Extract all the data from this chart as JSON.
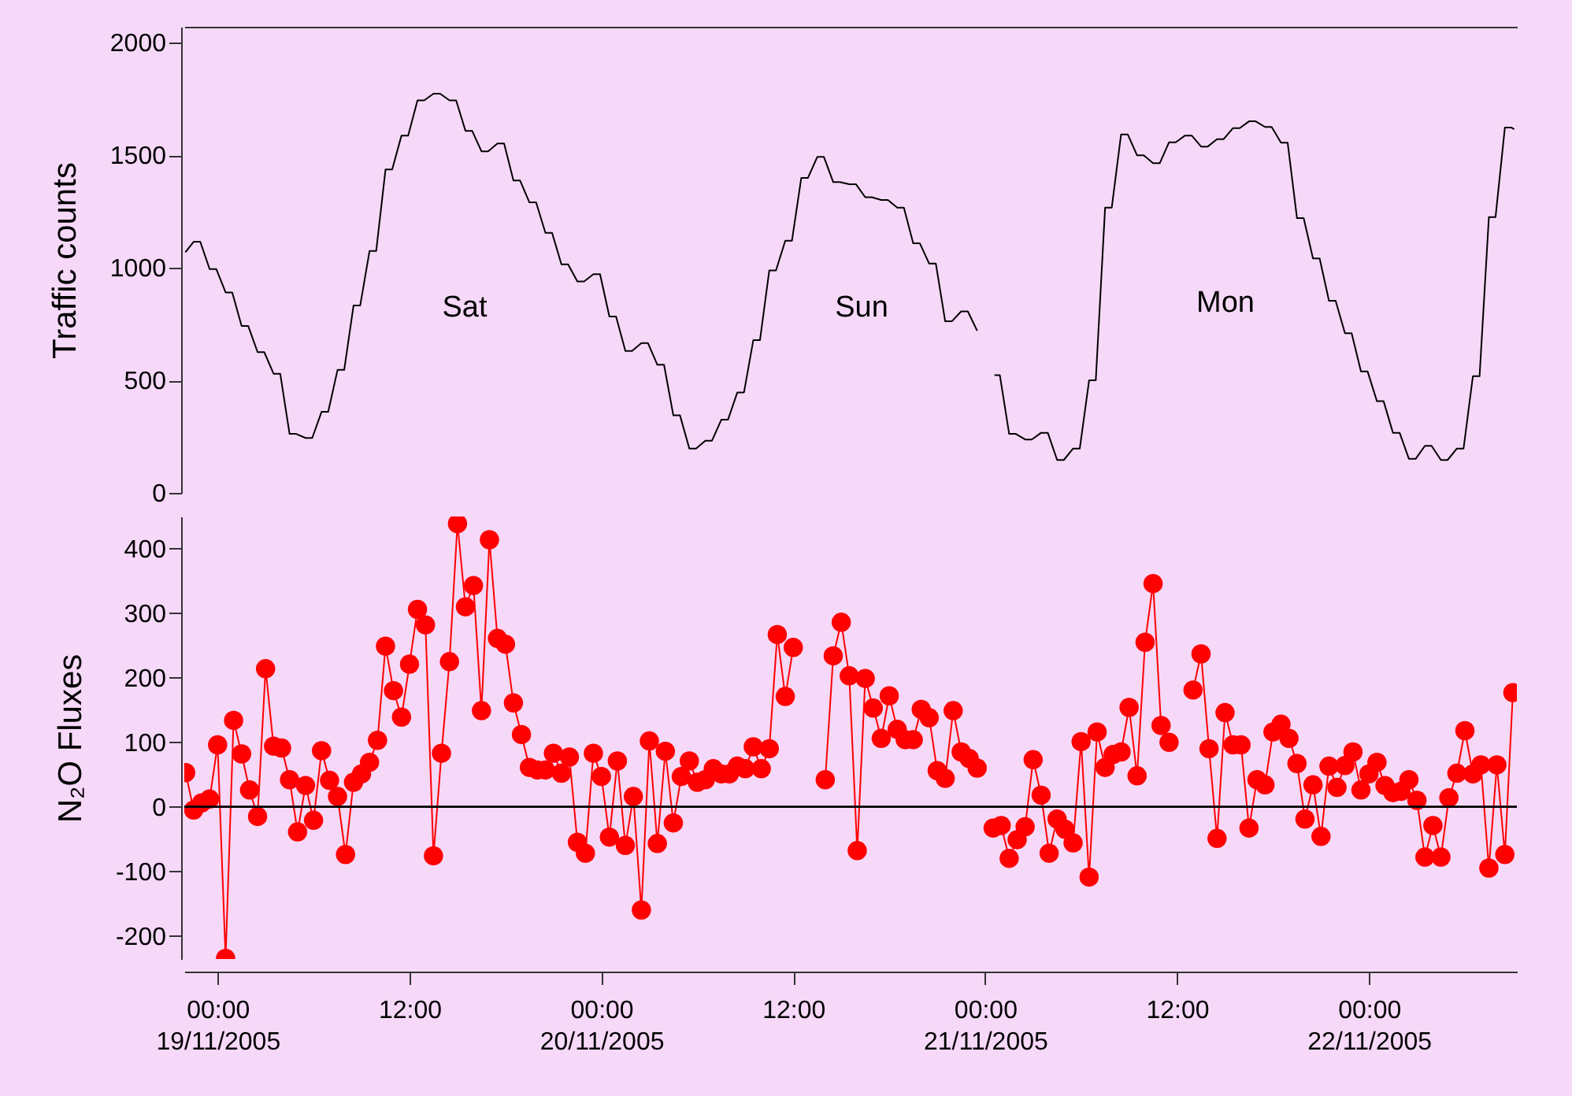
{
  "chart_data": [
    {
      "type": "line",
      "ylabel": "Traffic counts",
      "color": "#000000",
      "ylim": [
        0,
        2070
      ],
      "yticks": [
        0,
        500,
        1000,
        1500,
        2000
      ],
      "xlim": [
        "2005-11-18T21:55",
        "2005-11-22T09:15"
      ],
      "tick_labels": "y",
      "grid": false,
      "annotations": [
        "Sat",
        "Sun",
        "Mon"
      ],
      "x": [
        "2005-11-18T21:59",
        "2005-11-18T22:30",
        "2005-11-18T22:55",
        "2005-11-18T23:30",
        "2005-11-18T23:55",
        "2005-11-19T00:30",
        "2005-11-19T00:55",
        "2005-11-19T01:30",
        "2005-11-19T01:55",
        "2005-11-19T02:30",
        "2005-11-19T02:55",
        "2005-11-19T03:30",
        "2005-11-19T03:55",
        "2005-11-19T04:30",
        "2005-11-19T04:55",
        "2005-11-19T05:30",
        "2005-11-19T05:55",
        "2005-11-19T06:30",
        "2005-11-19T06:55",
        "2005-11-19T07:30",
        "2005-11-19T07:55",
        "2005-11-19T08:30",
        "2005-11-19T08:55",
        "2005-11-19T09:30",
        "2005-11-19T09:55",
        "2005-11-19T10:30",
        "2005-11-19T10:55",
        "2005-11-19T11:30",
        "2005-11-19T11:55",
        "2005-11-19T12:30",
        "2005-11-19T12:55",
        "2005-11-19T13:30",
        "2005-11-19T13:55",
        "2005-11-19T14:30",
        "2005-11-19T14:55",
        "2005-11-19T15:30",
        "2005-11-19T15:55",
        "2005-11-19T16:30",
        "2005-11-19T16:55",
        "2005-11-19T17:30",
        "2005-11-19T17:55",
        "2005-11-19T18:30",
        "2005-11-19T18:55",
        "2005-11-19T19:30",
        "2005-11-19T19:55",
        "2005-11-19T20:30",
        "2005-11-19T20:55",
        "2005-11-19T21:30",
        "2005-11-19T21:55",
        "2005-11-19T22:30",
        "2005-11-19T22:55",
        "2005-11-19T23:30",
        "2005-11-19T23:55",
        "2005-11-20T00:30",
        "2005-11-20T00:55",
        "2005-11-20T01:30",
        "2005-11-20T01:55",
        "2005-11-20T02:30",
        "2005-11-20T02:55",
        "2005-11-20T03:30",
        "2005-11-20T03:55",
        "2005-11-20T04:30",
        "2005-11-20T04:55",
        "2005-11-20T05:30",
        "2005-11-20T05:55",
        "2005-11-20T06:30",
        "2005-11-20T06:55",
        "2005-11-20T07:30",
        "2005-11-20T07:55",
        "2005-11-20T08:30",
        "2005-11-20T08:55",
        "2005-11-20T09:30",
        "2005-11-20T09:55",
        "2005-11-20T10:30",
        "2005-11-20T10:55",
        "2005-11-20T11:30",
        "2005-11-20T11:55",
        "2005-11-20T12:30",
        "2005-11-20T12:55",
        "2005-11-20T13:30",
        "2005-11-20T13:55",
        "2005-11-20T14:30",
        "2005-11-20T14:55",
        "2005-11-20T15:30",
        "2005-11-20T15:55",
        "2005-11-20T16:30",
        "2005-11-20T16:55",
        "2005-11-20T17:30",
        "2005-11-20T17:55",
        "2005-11-20T18:30",
        "2005-11-20T18:55",
        "2005-11-20T19:30",
        "2005-11-20T19:55",
        "2005-11-20T20:30",
        "2005-11-20T20:55",
        "2005-11-20T21:30",
        "2005-11-20T21:55",
        "2005-11-20T22:30",
        "2005-11-20T22:55",
        "2005-11-20T23:30",
        "2005-11-21T00:00",
        "2005-11-21T00:35",
        "2005-11-21T00:55",
        "2005-11-21T01:30",
        "2005-11-21T01:55",
        "2005-11-21T02:30",
        "2005-11-21T02:55",
        "2005-11-21T03:30",
        "2005-11-21T03:55",
        "2005-11-21T04:30",
        "2005-11-21T04:55",
        "2005-11-21T05:30",
        "2005-11-21T05:55",
        "2005-11-21T06:30",
        "2005-11-21T06:55",
        "2005-11-21T07:30",
        "2005-11-21T07:55",
        "2005-11-21T08:30",
        "2005-11-21T08:55",
        "2005-11-21T09:30",
        "2005-11-21T09:55",
        "2005-11-21T10:30",
        "2005-11-21T10:55",
        "2005-11-21T11:30",
        "2005-11-21T11:55",
        "2005-11-21T12:30",
        "2005-11-21T12:55",
        "2005-11-21T13:30",
        "2005-11-21T13:55",
        "2005-11-21T14:30",
        "2005-11-21T14:55",
        "2005-11-21T15:30",
        "2005-11-21T15:55",
        "2005-11-21T16:30",
        "2005-11-21T16:55",
        "2005-11-21T17:30",
        "2005-11-21T17:55",
        "2005-11-21T18:30",
        "2005-11-21T18:55",
        "2005-11-21T19:30",
        "2005-11-21T19:55",
        "2005-11-21T20:30",
        "2005-11-21T20:55",
        "2005-11-21T21:30",
        "2005-11-21T21:55",
        "2005-11-21T22:30",
        "2005-11-21T22:55",
        "2005-11-21T23:30",
        "2005-11-21T23:55",
        "2005-11-22T00:30",
        "2005-11-22T00:55",
        "2005-11-22T01:30",
        "2005-11-22T01:55",
        "2005-11-22T02:30",
        "2005-11-22T02:55",
        "2005-11-22T03:30",
        "2005-11-22T03:55",
        "2005-11-22T04:30",
        "2005-11-22T04:55",
        "2005-11-22T05:30",
        "2005-11-22T05:55",
        "2005-11-22T06:30",
        "2005-11-22T06:55",
        "2005-11-22T07:30",
        "2005-11-22T07:55",
        "2005-11-22T08:30",
        "2005-11-22T08:55",
        "2005-11-22T09:05"
      ],
      "values": [
        1069,
        1115,
        1115,
        994,
        994,
        890,
        890,
        741,
        741,
        625,
        625,
        529,
        529,
        262,
        262,
        244,
        244,
        360,
        360,
        546,
        546,
        832,
        832,
        1074,
        1074,
        1436,
        1436,
        1587,
        1587,
        1743,
        1743,
        1773,
        1773,
        1743,
        1743,
        1608,
        1608,
        1517,
        1517,
        1552,
        1552,
        1387,
        1387,
        1290,
        1290,
        1155,
        1155,
        1015,
        1015,
        939,
        939,
        971,
        971,
        783,
        783,
        630,
        630,
        665,
        665,
        569,
        569,
        344,
        344,
        197,
        197,
        232,
        232,
        325,
        325,
        446,
        446,
        678,
        678,
        988,
        988,
        1120,
        1120,
        1399,
        1399,
        1492,
        1492,
        1380,
        1380,
        1371,
        1371,
        1313,
        1313,
        1301,
        1301,
        1267,
        1267,
        1108,
        1108,
        1018,
        1018,
        762,
        762,
        806,
        806,
        720,
        null,
        523,
        523,
        262,
        262,
        237,
        237,
        267,
        267,
        146,
        146,
        197,
        197,
        500,
        500,
        1267,
        1267,
        1592,
        1592,
        1499,
        1499,
        1464,
        1464,
        1557,
        1557,
        1587,
        1587,
        1538,
        1538,
        1571,
        1571,
        1620,
        1620,
        1650,
        1650,
        1625,
        1625,
        1555,
        1555,
        1220,
        1220,
        1041,
        1041,
        853,
        853,
        709,
        709,
        539,
        539,
        407,
        407,
        267,
        267,
        151,
        151,
        209,
        209,
        146,
        146,
        197,
        197,
        518,
        518,
        1225,
        1225,
        1622,
        1622,
        1615
      ]
    },
    {
      "type": "line",
      "ylabel": "N₂O Fluxes",
      "color": "#ff0000",
      "marker": "circle",
      "ylim": [
        -236,
        450
      ],
      "yticks": [
        -200,
        -100,
        0,
        100,
        200,
        300,
        400
      ],
      "xlim": [
        "2005-11-18T21:55",
        "2005-11-22T09:15"
      ],
      "grid": false,
      "xticks": [
        {
          "value": "2005-11-19T00:00",
          "label": "00:00\n19/11/2005"
        },
        {
          "value": "2005-11-19T12:00",
          "label": "12:00"
        },
        {
          "value": "2005-11-20T00:00",
          "label": "00:00\n20/11/2005"
        },
        {
          "value": "2005-11-20T12:00",
          "label": "12:00"
        },
        {
          "value": "2005-11-21T00:00",
          "label": "00:00\n21/11/2005"
        },
        {
          "value": "2005-11-21T12:00",
          "label": "12:00"
        },
        {
          "value": "2005-11-22T00:00",
          "label": "00:00\n22/11/2005"
        }
      ],
      "ref_lines": [
        {
          "axis": "y",
          "value": 0,
          "color": "#000000"
        }
      ],
      "x": [
        "2005-11-18T22:00",
        "2005-11-18T22:30",
        "2005-11-18T23:00",
        "2005-11-18T23:30",
        "2005-11-19T00:00",
        "2005-11-19T00:30",
        "2005-11-19T01:00",
        "2005-11-19T01:30",
        "2005-11-19T02:00",
        "2005-11-19T02:30",
        "2005-11-19T03:00",
        "2005-11-19T03:30",
        "2005-11-19T04:00",
        "2005-11-19T04:30",
        "2005-11-19T05:00",
        "2005-11-19T05:30",
        "2005-11-19T06:00",
        "2005-11-19T06:30",
        "2005-11-19T07:00",
        "2005-11-19T07:30",
        "2005-11-19T08:00",
        "2005-11-19T08:30",
        "2005-11-19T09:00",
        "2005-11-19T09:30",
        "2005-11-19T10:00",
        "2005-11-19T10:30",
        "2005-11-19T11:00",
        "2005-11-19T11:30",
        "2005-11-19T12:00",
        "2005-11-19T12:30",
        "2005-11-19T13:00",
        "2005-11-19T13:30",
        "2005-11-19T14:00",
        "2005-11-19T14:30",
        "2005-11-19T15:00",
        "2005-11-19T15:30",
        "2005-11-19T16:00",
        "2005-11-19T16:30",
        "2005-11-19T17:00",
        "2005-11-19T17:30",
        "2005-11-19T18:00",
        "2005-11-19T18:30",
        "2005-11-19T19:00",
        "2005-11-19T19:30",
        "2005-11-19T20:00",
        "2005-11-19T20:30",
        "2005-11-19T21:00",
        "2005-11-19T21:30",
        "2005-11-19T22:00",
        "2005-11-19T22:30",
        "2005-11-19T23:00",
        "2005-11-19T23:30",
        "2005-11-20T00:00",
        "2005-11-20T00:30",
        "2005-11-20T01:00",
        "2005-11-20T01:30",
        "2005-11-20T02:00",
        "2005-11-20T02:30",
        "2005-11-20T03:00",
        "2005-11-20T03:30",
        "2005-11-20T04:00",
        "2005-11-20T04:30",
        "2005-11-20T05:00",
        "2005-11-20T05:30",
        "2005-11-20T06:00",
        "2005-11-20T06:30",
        "2005-11-20T07:00",
        "2005-11-20T07:30",
        "2005-11-20T08:00",
        "2005-11-20T08:30",
        "2005-11-20T09:00",
        "2005-11-20T09:30",
        "2005-11-20T10:00",
        "2005-11-20T10:30",
        "2005-11-20T11:00",
        "2005-11-20T11:30",
        "2005-11-20T12:00",
        "2005-11-20T13:00",
        "2005-11-20T14:00",
        "2005-11-20T14:30",
        "2005-11-20T15:00",
        "2005-11-20T15:30",
        "2005-11-20T16:00",
        "2005-11-20T16:30",
        "2005-11-20T17:00",
        "2005-11-20T17:30",
        "2005-11-20T18:00",
        "2005-11-20T18:30",
        "2005-11-20T19:00",
        "2005-11-20T19:30",
        "2005-11-20T20:00",
        "2005-11-20T20:30",
        "2005-11-20T21:00",
        "2005-11-20T21:30",
        "2005-11-20T22:00",
        "2005-11-20T22:30",
        "2005-11-20T23:00",
        "2005-11-20T23:30",
        "2005-11-21T00:00",
        "2005-11-21T00:30",
        "2005-11-21T01:00",
        "2005-11-21T01:30",
        "2005-11-21T02:00",
        "2005-11-21T02:30",
        "2005-11-21T03:00",
        "2005-11-21T03:30",
        "2005-11-21T04:00",
        "2005-11-21T04:30",
        "2005-11-21T05:00",
        "2005-11-21T05:30",
        "2005-11-21T06:00",
        "2005-11-21T06:30",
        "2005-11-21T07:00",
        "2005-11-21T07:30",
        "2005-11-21T08:00",
        "2005-11-21T08:30",
        "2005-11-21T09:00",
        "2005-11-21T09:30",
        "2005-11-21T10:00",
        "2005-11-21T10:30",
        "2005-11-21T11:00",
        "2005-11-21T11:30",
        "2005-11-21T12:00",
        "2005-11-21T13:00",
        "2005-11-21T13:30",
        "2005-11-21T14:00",
        "2005-11-21T14:30",
        "2005-11-21T15:00",
        "2005-11-21T15:30",
        "2005-11-21T16:00",
        "2005-11-21T16:30",
        "2005-11-21T17:00",
        "2005-11-21T17:30",
        "2005-11-21T18:00",
        "2005-11-21T18:30",
        "2005-11-21T19:00",
        "2005-11-21T19:30",
        "2005-11-21T20:00",
        "2005-11-21T20:30",
        "2005-11-21T21:00",
        "2005-11-21T21:30",
        "2005-11-21T22:00",
        "2005-11-21T22:30",
        "2005-11-21T23:00",
        "2005-11-21T23:30",
        "2005-11-22T00:00",
        "2005-11-22T00:30",
        "2005-11-22T01:00",
        "2005-11-22T01:30",
        "2005-11-22T02:00",
        "2005-11-22T02:30",
        "2005-11-22T03:00",
        "2005-11-22T03:30",
        "2005-11-22T04:00",
        "2005-11-22T04:30",
        "2005-11-22T05:00",
        "2005-11-22T05:30",
        "2005-11-22T06:00",
        "2005-11-22T06:30",
        "2005-11-22T07:00",
        "2005-11-22T07:30",
        "2005-11-22T08:00",
        "2005-11-22T08:30",
        "2005-11-22T09:00"
      ],
      "values": [
        53,
        -5,
        6,
        12,
        96,
        -235,
        134,
        82,
        26,
        -15,
        214,
        94,
        91,
        42,
        -39,
        33,
        -21,
        87,
        41,
        16,
        -74,
        38,
        51,
        69,
        103,
        249,
        180,
        139,
        221,
        306,
        282,
        -76,
        83,
        225,
        439,
        310,
        343,
        149,
        414,
        261,
        252,
        161,
        112,
        61,
        57,
        57,
        83,
        52,
        77,
        -55,
        -72,
        83,
        47,
        -47,
        71,
        -60,
        16,
        -160,
        102,
        -57,
        86,
        -25,
        47,
        71,
        38,
        42,
        59,
        51,
        51,
        63,
        59,
        93,
        59,
        90,
        267,
        171,
        247,
        null,
        42,
        234,
        286,
        203,
        -68,
        199,
        153,
        106,
        172,
        120,
        104,
        104,
        151,
        138,
        56,
        44,
        149,
        85,
        75,
        60,
        null,
        -33,
        -29,
        -80,
        -51,
        -31,
        73,
        18,
        -72,
        -19,
        -35,
        -56,
        101,
        -109,
        116,
        61,
        81,
        85,
        154,
        48,
        255,
        346,
        126,
        100,
        null,
        181,
        237,
        90,
        -49,
        146,
        96,
        96,
        -33,
        42,
        34,
        116,
        128,
        106,
        67,
        -19,
        34,
        -46,
        63,
        30,
        64,
        85,
        26,
        51,
        69,
        33,
        22,
        24,
        42,
        10,
        -78,
        -29,
        -78,
        14,
        52,
        118,
        51,
        65,
        -95,
        65,
        -74,
        177
      ]
    }
  ]
}
